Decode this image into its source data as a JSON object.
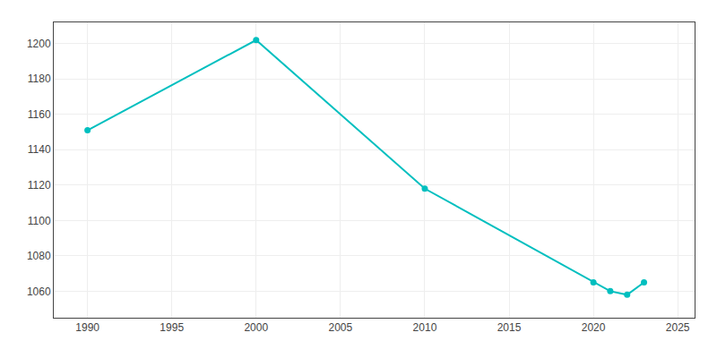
{
  "chart_data": {
    "type": "line",
    "x": [
      1990,
      2000,
      2010,
      2020,
      2021,
      2022,
      2023
    ],
    "values": [
      1151,
      1202,
      1118,
      1065,
      1060,
      1058,
      1065
    ],
    "color": "#00BFBF",
    "marker": "circle",
    "xlim": [
      1988,
      2026
    ],
    "ylim": [
      1045,
      1212
    ],
    "xticks": [
      1990,
      1995,
      2000,
      2005,
      2010,
      2015,
      2020,
      2025
    ],
    "yticks": [
      1060,
      1080,
      1100,
      1120,
      1140,
      1160,
      1180,
      1200
    ],
    "grid": true
  }
}
